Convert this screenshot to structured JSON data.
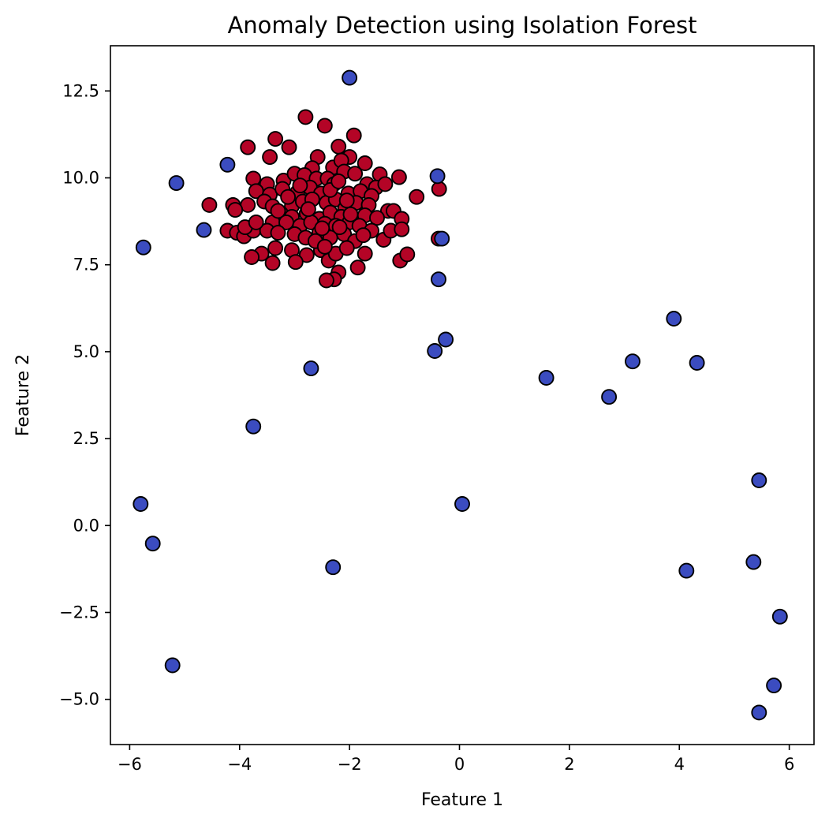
{
  "chart_data": {
    "type": "scatter",
    "title": "Anomaly Detection using Isolation Forest",
    "xlabel": "Feature 1",
    "ylabel": "Feature 2",
    "xlim": [
      -6.35,
      6.45
    ],
    "ylim": [
      -6.3,
      13.8
    ],
    "grid": false,
    "x_ticks": [
      {
        "value": -6,
        "label": "−6"
      },
      {
        "value": -4,
        "label": "−4"
      },
      {
        "value": -2,
        "label": "−2"
      },
      {
        "value": 0,
        "label": "0"
      },
      {
        "value": 2,
        "label": "2"
      },
      {
        "value": 4,
        "label": "4"
      },
      {
        "value": 6,
        "label": "6"
      }
    ],
    "y_ticks": [
      {
        "value": -5.0,
        "label": "−5.0"
      },
      {
        "value": -2.5,
        "label": "−2.5"
      },
      {
        "value": 0.0,
        "label": "0.0"
      },
      {
        "value": 2.5,
        "label": "2.5"
      },
      {
        "value": 5.0,
        "label": "5.0"
      },
      {
        "value": 7.5,
        "label": "7.5"
      },
      {
        "value": 10.0,
        "label": "10.0"
      },
      {
        "value": 12.5,
        "label": "12.5"
      }
    ],
    "series": [
      {
        "color": "#b40426",
        "points": [
          [
            -3.85,
            10.88
          ],
          [
            -3.35,
            11.12
          ],
          [
            -3.1,
            10.88
          ],
          [
            -2.8,
            11.75
          ],
          [
            -2.45,
            11.5
          ],
          [
            -1.92,
            11.22
          ],
          [
            -3.45,
            10.6
          ],
          [
            -2.58,
            10.6
          ],
          [
            -2.2,
            10.9
          ],
          [
            -2.0,
            10.6
          ],
          [
            -1.72,
            10.42
          ],
          [
            -2.68,
            10.28
          ],
          [
            -2.3,
            10.3
          ],
          [
            -2.15,
            10.5
          ],
          [
            -1.45,
            10.1
          ],
          [
            -1.1,
            10.02
          ],
          [
            -0.37,
            9.68
          ],
          [
            -0.78,
            9.45
          ],
          [
            -3.75,
            9.98
          ],
          [
            -3.5,
            9.82
          ],
          [
            -3.2,
            9.92
          ],
          [
            -3.0,
            10.12
          ],
          [
            -2.82,
            10.08
          ],
          [
            -2.6,
            9.98
          ],
          [
            -2.4,
            9.98
          ],
          [
            -2.1,
            10.18
          ],
          [
            -1.9,
            10.12
          ],
          [
            -1.68,
            9.82
          ],
          [
            -1.52,
            9.72
          ],
          [
            -1.35,
            9.82
          ],
          [
            -3.7,
            9.62
          ],
          [
            -3.45,
            9.52
          ],
          [
            -3.22,
            9.68
          ],
          [
            -2.95,
            9.58
          ],
          [
            -2.72,
            9.72
          ],
          [
            -2.52,
            9.55
          ],
          [
            -2.28,
            9.82
          ],
          [
            -2.02,
            9.55
          ],
          [
            -1.8,
            9.62
          ],
          [
            -1.6,
            9.48
          ],
          [
            -4.55,
            9.22
          ],
          [
            -4.12,
            9.22
          ],
          [
            -3.85,
            9.22
          ],
          [
            -3.55,
            9.32
          ],
          [
            -3.4,
            9.18
          ],
          [
            -3.05,
            9.18
          ],
          [
            -2.85,
            9.32
          ],
          [
            -2.68,
            9.38
          ],
          [
            -2.42,
            9.28
          ],
          [
            -2.25,
            9.38
          ],
          [
            -2.08,
            9.12
          ],
          [
            -1.88,
            9.28
          ],
          [
            -1.65,
            9.22
          ],
          [
            -1.3,
            9.05
          ],
          [
            -4.08,
            9.08
          ],
          [
            -3.25,
            8.98
          ],
          [
            -3.05,
            8.88
          ],
          [
            -2.78,
            8.98
          ],
          [
            -2.55,
            8.82
          ],
          [
            -2.35,
            9.0
          ],
          [
            -2.15,
            8.88
          ],
          [
            -1.95,
            8.82
          ],
          [
            -1.72,
            8.92
          ],
          [
            -1.5,
            8.85
          ],
          [
            -1.2,
            9.05
          ],
          [
            -1.05,
            8.82
          ],
          [
            -3.4,
            8.72
          ],
          [
            -3.15,
            8.72
          ],
          [
            -2.9,
            8.62
          ],
          [
            -2.7,
            8.72
          ],
          [
            -2.45,
            8.68
          ],
          [
            -2.25,
            8.62
          ],
          [
            -2.0,
            8.72
          ],
          [
            -1.82,
            8.62
          ],
          [
            -4.22,
            8.48
          ],
          [
            -4.05,
            8.42
          ],
          [
            -3.92,
            8.32
          ],
          [
            -3.75,
            8.48
          ],
          [
            -3.5,
            8.48
          ],
          [
            -3.3,
            8.42
          ],
          [
            -3.0,
            8.38
          ],
          [
            -2.8,
            8.28
          ],
          [
            -2.55,
            8.42
          ],
          [
            -2.35,
            8.28
          ],
          [
            -2.1,
            8.38
          ],
          [
            -1.9,
            8.18
          ],
          [
            -1.6,
            8.48
          ],
          [
            -1.38,
            8.22
          ],
          [
            -1.25,
            8.48
          ],
          [
            -1.05,
            8.52
          ],
          [
            -0.38,
            8.25
          ],
          [
            -3.6,
            7.82
          ],
          [
            -3.35,
            7.98
          ],
          [
            -3.05,
            7.92
          ],
          [
            -2.78,
            7.78
          ],
          [
            -2.52,
            7.92
          ],
          [
            -2.38,
            7.62
          ],
          [
            -2.25,
            7.82
          ],
          [
            -2.05,
            7.98
          ],
          [
            -1.72,
            7.82
          ],
          [
            -1.08,
            7.62
          ],
          [
            -0.95,
            7.8
          ],
          [
            -3.78,
            7.72
          ],
          [
            -3.4,
            7.55
          ],
          [
            -2.98,
            7.58
          ],
          [
            -2.2,
            7.28
          ],
          [
            -1.85,
            7.42
          ],
          [
            -2.28,
            7.08
          ],
          [
            -2.42,
            7.05
          ],
          [
            -3.9,
            8.58
          ],
          [
            -3.7,
            8.72
          ],
          [
            -2.62,
            8.18
          ],
          [
            -2.45,
            8.02
          ],
          [
            -2.18,
            8.58
          ],
          [
            -1.98,
            8.95
          ],
          [
            -2.9,
            9.78
          ],
          [
            -2.35,
            9.65
          ],
          [
            -2.75,
            9.1
          ],
          [
            -2.2,
            9.9
          ],
          [
            -3.12,
            9.45
          ],
          [
            -2.5,
            8.55
          ],
          [
            -3.3,
            9.05
          ],
          [
            -1.75,
            8.35
          ],
          [
            -2.05,
            9.35
          ]
        ]
      },
      {
        "color": "#3b4cc0",
        "points": [
          [
            -2.0,
            12.88
          ],
          [
            -4.22,
            10.38
          ],
          [
            -5.15,
            9.85
          ],
          [
            -0.4,
            10.05
          ],
          [
            -4.65,
            8.5
          ],
          [
            -5.75,
            8.0
          ],
          [
            -0.38,
            7.08
          ],
          [
            -0.32,
            8.25
          ],
          [
            3.9,
            5.95
          ],
          [
            -0.25,
            5.35
          ],
          [
            -0.45,
            5.02
          ],
          [
            -2.7,
            4.52
          ],
          [
            3.15,
            4.72
          ],
          [
            4.32,
            4.68
          ],
          [
            1.58,
            4.25
          ],
          [
            2.72,
            3.7
          ],
          [
            -3.75,
            2.85
          ],
          [
            5.45,
            1.3
          ],
          [
            -5.8,
            0.62
          ],
          [
            0.05,
            0.62
          ],
          [
            -5.58,
            -0.52
          ],
          [
            -2.3,
            -1.2
          ],
          [
            5.35,
            -1.05
          ],
          [
            4.13,
            -1.3
          ],
          [
            5.83,
            -2.62
          ],
          [
            -5.22,
            -4.02
          ],
          [
            5.72,
            -4.6
          ],
          [
            5.45,
            -5.38
          ]
        ]
      }
    ]
  }
}
